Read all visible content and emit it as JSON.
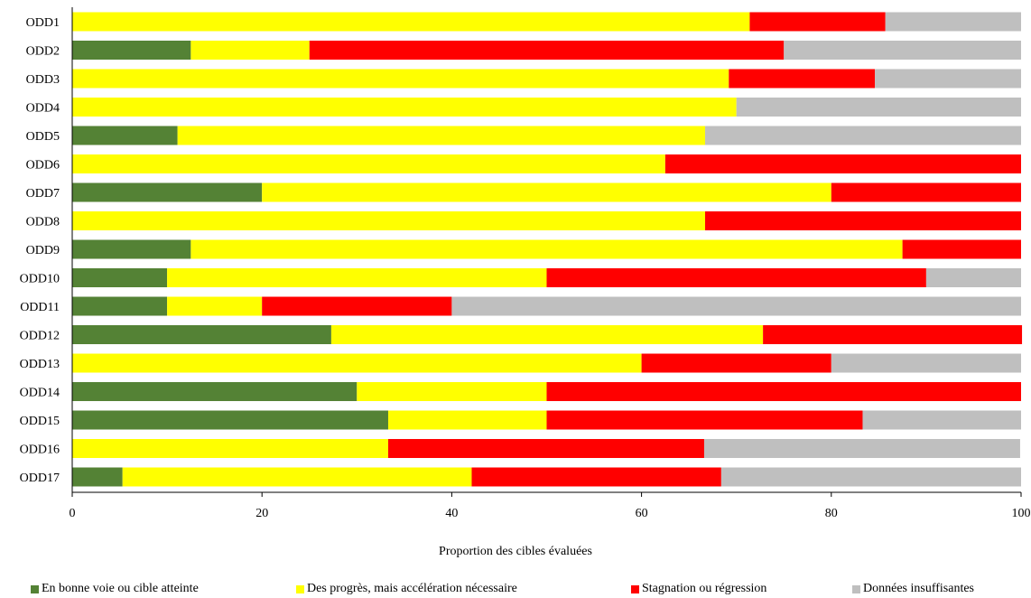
{
  "chart_data": {
    "type": "bar",
    "orientation": "horizontal",
    "stacked": true,
    "title": "",
    "xlabel": "Proportion des cibles évaluées",
    "ylabel": "",
    "xlim": [
      0,
      100
    ],
    "xticks": [
      0,
      20,
      40,
      60,
      80,
      100
    ],
    "grid": false,
    "legend_position": "bottom",
    "categories": [
      "ODD1",
      "ODD2",
      "ODD3",
      "ODD4",
      "ODD5",
      "ODD6",
      "ODD7",
      "ODD8",
      "ODD9",
      "ODD10",
      "ODD11",
      "ODD12",
      "ODD13",
      "ODD14",
      "ODD15",
      "ODD16",
      "ODD17"
    ],
    "series": [
      {
        "name": "En bonne voie ou cible atteinte",
        "color": "#548235",
        "values": [
          0,
          12.5,
          0,
          0,
          11.1,
          0,
          20,
          0,
          12.5,
          10,
          10,
          27.3,
          0,
          30,
          33.3,
          0,
          5.3
        ]
      },
      {
        "name": "Des progrès, mais accélération nécessaire",
        "color": "#ffff00",
        "values": [
          71.4,
          12.5,
          69.2,
          70,
          55.6,
          62.5,
          60,
          66.7,
          75,
          40,
          10,
          45.5,
          60,
          20,
          16.7,
          33.3,
          36.8
        ]
      },
      {
        "name": "Stagnation ou régression",
        "color": "#ff0000",
        "values": [
          14.3,
          50,
          15.4,
          0,
          0,
          37.5,
          20,
          33.3,
          12.5,
          40,
          20,
          27.3,
          20,
          50,
          33.3,
          33.3,
          26.3
        ]
      },
      {
        "name": "Données insuffisantes",
        "color": "#bfbfbf",
        "values": [
          14.3,
          25,
          15.4,
          30,
          33.3,
          0,
          0,
          0,
          0,
          10,
          60,
          0,
          20,
          0,
          16.7,
          33.3,
          31.6
        ]
      }
    ]
  }
}
